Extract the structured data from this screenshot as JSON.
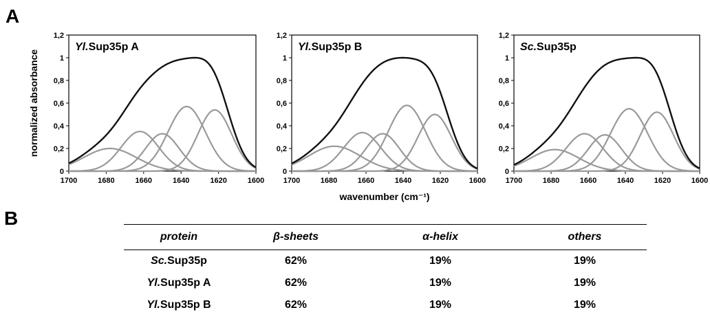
{
  "panels": {
    "a": "A",
    "b": "B"
  },
  "chart_data": [
    {
      "type": "line",
      "title_prefix": "Yl.",
      "title_suffix": "Sup35p A",
      "xlabel": "",
      "ylabel": "normalized absorbance",
      "xlim": [
        1700,
        1600
      ],
      "ylim": [
        0,
        1.2
      ],
      "x_ticks": [
        "1700",
        "1680",
        "1660",
        "1640",
        "1620",
        "1600"
      ],
      "y_ticks": [
        "0",
        "0,2",
        "0,4",
        "0,6",
        "0,8",
        "1",
        "1,2"
      ],
      "series": [
        {
          "role": "fit-component",
          "peak": 1678,
          "height": 0.2,
          "width": 14
        },
        {
          "role": "fit-component",
          "peak": 1662,
          "height": 0.35,
          "width": 10
        },
        {
          "role": "fit-component",
          "peak": 1650,
          "height": 0.33,
          "width": 9
        },
        {
          "role": "fit-component",
          "peak": 1637,
          "height": 0.57,
          "width": 10
        },
        {
          "role": "fit-component",
          "peak": 1622,
          "height": 0.54,
          "width": 9
        }
      ]
    },
    {
      "type": "line",
      "title_prefix": "Yl.",
      "title_suffix": "Sup35p B",
      "xlabel": "wavenumber (cm⁻¹)",
      "ylabel": "",
      "xlim": [
        1700,
        1600
      ],
      "ylim": [
        0,
        1.2
      ],
      "x_ticks": [
        "1700",
        "1680",
        "1660",
        "1640",
        "1620",
        "1600"
      ],
      "y_ticks": [
        "0",
        "0,2",
        "0,4",
        "0,6",
        "0,8",
        "1",
        "1,2"
      ],
      "series": [
        {
          "role": "fit-component",
          "peak": 1677,
          "height": 0.22,
          "width": 14
        },
        {
          "role": "fit-component",
          "peak": 1662,
          "height": 0.34,
          "width": 10
        },
        {
          "role": "fit-component",
          "peak": 1651,
          "height": 0.33,
          "width": 9
        },
        {
          "role": "fit-component",
          "peak": 1638,
          "height": 0.58,
          "width": 10
        },
        {
          "role": "fit-component",
          "peak": 1623,
          "height": 0.5,
          "width": 9
        }
      ]
    },
    {
      "type": "line",
      "title_prefix": "Sc.",
      "title_suffix": "Sup35p",
      "xlabel": "",
      "ylabel": "",
      "xlim": [
        1700,
        1600
      ],
      "ylim": [
        0,
        1.2
      ],
      "x_ticks": [
        "1700",
        "1680",
        "1660",
        "1640",
        "1620",
        "1600"
      ],
      "y_ticks": [
        "0",
        "0,2",
        "0,4",
        "0,6",
        "0,8",
        "1",
        "1,2"
      ],
      "series": [
        {
          "role": "fit-component",
          "peak": 1678,
          "height": 0.19,
          "width": 13
        },
        {
          "role": "fit-component",
          "peak": 1662,
          "height": 0.33,
          "width": 10
        },
        {
          "role": "fit-component",
          "peak": 1651,
          "height": 0.32,
          "width": 9
        },
        {
          "role": "fit-component",
          "peak": 1638,
          "height": 0.55,
          "width": 10
        },
        {
          "role": "fit-component",
          "peak": 1623,
          "height": 0.52,
          "width": 9
        }
      ]
    }
  ],
  "colors": {
    "component": "#999999",
    "envelope": "#111111"
  },
  "table": {
    "headers": [
      "protein",
      "β-sheets",
      "α-helix",
      "others"
    ],
    "rows": [
      {
        "protein_prefix": "Sc.",
        "protein_suffix": "Sup35p",
        "beta": "62%",
        "alpha": "19%",
        "others": "19%"
      },
      {
        "protein_prefix": "Yl.",
        "protein_suffix": "Sup35p A",
        "beta": "62%",
        "alpha": "19%",
        "others": "19%"
      },
      {
        "protein_prefix": "Yl.",
        "protein_suffix": "Sup35p B",
        "beta": "62%",
        "alpha": "19%",
        "others": "19%"
      }
    ]
  }
}
